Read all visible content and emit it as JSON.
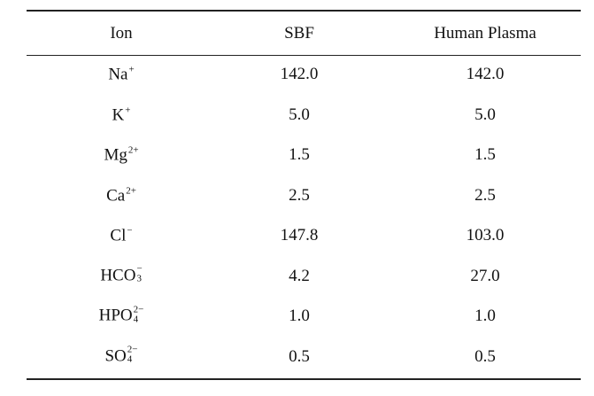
{
  "table": {
    "header": [
      "Ion",
      "SBF",
      "Human Plasma"
    ],
    "rows": [
      [
        {
          "base": "Na",
          "sup": "+"
        },
        "142.0",
        "142.0"
      ],
      [
        {
          "base": "K",
          "sup": "+"
        },
        "5.0",
        "5.0"
      ],
      [
        {
          "base": "Mg",
          "sup": "2+"
        },
        "1.5",
        "1.5"
      ],
      [
        {
          "base": "Ca",
          "sup": "2+"
        },
        "2.5",
        "2.5"
      ],
      [
        {
          "base": "Cl",
          "sup": "−"
        },
        "147.8",
        "103.0"
      ],
      [
        {
          "base": "HCO",
          "sub": "3",
          "sup": "−"
        },
        "4.2",
        "27.0"
      ],
      [
        {
          "base": "HPO",
          "sub": "4",
          "sup": "2−"
        },
        "1.0",
        "1.0"
      ],
      [
        {
          "base": "SO",
          "sub": "4",
          "sup": "2−"
        },
        "0.5",
        "0.5"
      ]
    ]
  }
}
